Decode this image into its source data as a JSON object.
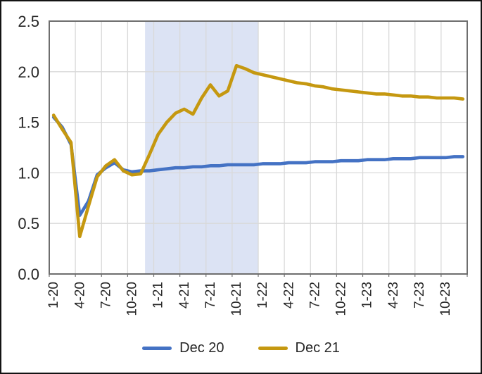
{
  "chart_data": {
    "type": "line",
    "title": "",
    "xlabel": "",
    "ylabel": "",
    "ylim": [
      0,
      2.5
    ],
    "ytick_step": 0.5,
    "yticks": [
      "0.0",
      "0.5",
      "1.0",
      "1.5",
      "2.0",
      "2.5"
    ],
    "grid": true,
    "legend_position": "bottom",
    "x_label_interval": 3,
    "categories": [
      "1-20",
      "2-20",
      "3-20",
      "4-20",
      "5-20",
      "6-20",
      "7-20",
      "8-20",
      "9-20",
      "10-20",
      "11-20",
      "12-20",
      "1-21",
      "2-21",
      "3-21",
      "4-21",
      "5-21",
      "6-21",
      "7-21",
      "8-21",
      "9-21",
      "10-21",
      "11-21",
      "12-21",
      "1-22",
      "2-22",
      "3-22",
      "4-22",
      "5-22",
      "6-22",
      "7-22",
      "8-22",
      "9-22",
      "10-22",
      "11-22",
      "12-22",
      "1-23",
      "2-23",
      "3-23",
      "4-23",
      "5-23",
      "6-23",
      "7-23",
      "8-23",
      "9-23",
      "10-23",
      "11-23",
      "12-23"
    ],
    "x_tick_labels_shown": [
      "1-20",
      "4-20",
      "7-20",
      "10-20",
      "1-21",
      "4-21",
      "7-21",
      "10-21",
      "1-22",
      "4-22",
      "7-22",
      "10-22",
      "1-23",
      "4-23",
      "7-23",
      "10-23"
    ],
    "series": [
      {
        "name": "Dec 20",
        "color": "#4472C4",
        "values": [
          1.55,
          1.45,
          1.28,
          0.58,
          0.72,
          0.98,
          1.05,
          1.1,
          1.03,
          1.01,
          1.02,
          1.02,
          1.03,
          1.04,
          1.05,
          1.05,
          1.06,
          1.06,
          1.07,
          1.07,
          1.08,
          1.08,
          1.08,
          1.08,
          1.09,
          1.09,
          1.09,
          1.1,
          1.1,
          1.1,
          1.11,
          1.11,
          1.11,
          1.12,
          1.12,
          1.12,
          1.13,
          1.13,
          1.13,
          1.14,
          1.14,
          1.14,
          1.15,
          1.15,
          1.15,
          1.15,
          1.16,
          1.16
        ]
      },
      {
        "name": "Dec 21",
        "color": "#C59810",
        "values": [
          1.57,
          1.43,
          1.3,
          0.37,
          0.67,
          0.96,
          1.07,
          1.13,
          1.02,
          0.98,
          0.99,
          1.18,
          1.38,
          1.5,
          1.59,
          1.63,
          1.58,
          1.74,
          1.87,
          1.76,
          1.81,
          2.06,
          2.03,
          1.99,
          1.97,
          1.95,
          1.93,
          1.91,
          1.89,
          1.88,
          1.86,
          1.85,
          1.83,
          1.82,
          1.81,
          1.8,
          1.79,
          1.78,
          1.78,
          1.77,
          1.76,
          1.76,
          1.75,
          1.75,
          1.74,
          1.74,
          1.74,
          1.73
        ]
      }
    ],
    "shaded_region": {
      "from": "12-20",
      "to": "12-21",
      "color": "#DCE3F4"
    }
  },
  "theme": {
    "background": "#FFFFFF",
    "figure_border": "#141414",
    "gridline": "#D9D9D9",
    "axis": "#6E6E6E",
    "tick_label": "#262626"
  }
}
